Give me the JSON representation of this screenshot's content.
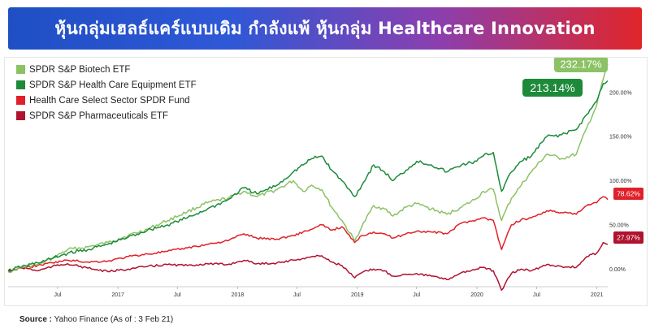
{
  "banner": {
    "title": "หุ้นกลุ่มเฮลธ์แคร์แบบเดิม กำลังแพ้ หุ้นกลุ่ม Healthcare Innovation"
  },
  "source": {
    "label": "Source :",
    "text": "Yahoo Finance (As of : 3 Feb 21)"
  },
  "colors": {
    "biotech": "#8cc265",
    "equipment": "#1d8a3a",
    "select_sector": "#e0202a",
    "pharma": "#b0132e"
  },
  "chart_data": {
    "type": "line",
    "ylabel": "",
    "xlabel": "",
    "y_unit": "%",
    "ylim": [
      -20,
      232
    ],
    "y_ticks": [
      "0.00%",
      "50.00%",
      "100.00%",
      "150.00%",
      "200.00%"
    ],
    "y_tick_values": [
      0,
      50,
      100,
      150,
      200
    ],
    "x_tick_labels": [
      "Jul",
      "2017",
      "Jul",
      "2018",
      "Jul",
      "2019",
      "Jul",
      "2020",
      "Jul",
      "2021"
    ],
    "x_tick_dates": [
      "2016-07-01",
      "2017-01-01",
      "2017-07-01",
      "2018-01-01",
      "2018-07-01",
      "2019-01-01",
      "2019-07-01",
      "2020-01-01",
      "2020-07-01",
      "2021-01-01"
    ],
    "x_range": [
      "2016-02-01",
      "2021-02-03"
    ],
    "grid": false,
    "legend_position": "top-left",
    "series": [
      {
        "name": "SPDR S&P Biotech ETF",
        "color": "#8cc265",
        "end_label": "232.17%",
        "points": [
          [
            "2016-02-01",
            -3
          ],
          [
            "2016-03-15",
            2
          ],
          [
            "2016-05-01",
            5
          ],
          [
            "2016-06-15",
            12
          ],
          [
            "2016-08-01",
            22
          ],
          [
            "2016-10-01",
            25
          ],
          [
            "2016-12-01",
            30
          ],
          [
            "2017-02-01",
            38
          ],
          [
            "2017-04-01",
            45
          ],
          [
            "2017-06-01",
            55
          ],
          [
            "2017-08-01",
            65
          ],
          [
            "2017-10-01",
            75
          ],
          [
            "2017-12-01",
            80
          ],
          [
            "2018-01-20",
            88
          ],
          [
            "2018-03-01",
            82
          ],
          [
            "2018-05-01",
            90
          ],
          [
            "2018-06-20",
            100
          ],
          [
            "2018-07-20",
            88
          ],
          [
            "2018-08-15",
            95
          ],
          [
            "2018-09-15",
            90
          ],
          [
            "2018-10-15",
            70
          ],
          [
            "2018-11-15",
            55
          ],
          [
            "2018-12-24",
            32
          ],
          [
            "2019-01-15",
            48
          ],
          [
            "2019-02-20",
            72
          ],
          [
            "2019-03-25",
            68
          ],
          [
            "2019-04-20",
            60
          ],
          [
            "2019-05-30",
            70
          ],
          [
            "2019-07-01",
            74
          ],
          [
            "2019-08-15",
            68
          ],
          [
            "2019-10-01",
            62
          ],
          [
            "2019-11-15",
            70
          ],
          [
            "2019-12-31",
            80
          ],
          [
            "2020-01-20",
            88
          ],
          [
            "2020-02-20",
            90
          ],
          [
            "2020-03-16",
            55
          ],
          [
            "2020-04-15",
            80
          ],
          [
            "2020-05-15",
            95
          ],
          [
            "2020-06-15",
            110
          ],
          [
            "2020-08-01",
            130
          ],
          [
            "2020-09-15",
            125
          ],
          [
            "2020-10-30",
            130
          ],
          [
            "2020-12-01",
            160
          ],
          [
            "2020-12-31",
            185
          ],
          [
            "2021-01-20",
            215
          ],
          [
            "2021-02-03",
            232.17
          ]
        ]
      },
      {
        "name": "SPDR S&P Health Care Equipment ETF",
        "color": "#1d8a3a",
        "end_label": "213.14%",
        "points": [
          [
            "2016-02-01",
            -2
          ],
          [
            "2016-03-15",
            3
          ],
          [
            "2016-05-01",
            7
          ],
          [
            "2016-06-15",
            12
          ],
          [
            "2016-08-01",
            18
          ],
          [
            "2016-10-01",
            22
          ],
          [
            "2016-12-01",
            28
          ],
          [
            "2017-02-01",
            36
          ],
          [
            "2017-04-01",
            44
          ],
          [
            "2017-06-01",
            50
          ],
          [
            "2017-08-01",
            58
          ],
          [
            "2017-10-01",
            68
          ],
          [
            "2017-12-01",
            78
          ],
          [
            "2018-01-20",
            92
          ],
          [
            "2018-03-01",
            85
          ],
          [
            "2018-05-01",
            95
          ],
          [
            "2018-06-20",
            110
          ],
          [
            "2018-07-20",
            118
          ],
          [
            "2018-08-15",
            125
          ],
          [
            "2018-09-15",
            128
          ],
          [
            "2018-10-15",
            112
          ],
          [
            "2018-11-15",
            100
          ],
          [
            "2018-12-24",
            82
          ],
          [
            "2019-01-15",
            95
          ],
          [
            "2019-02-20",
            118
          ],
          [
            "2019-03-25",
            110
          ],
          [
            "2019-04-20",
            100
          ],
          [
            "2019-05-30",
            112
          ],
          [
            "2019-07-01",
            122
          ],
          [
            "2019-08-15",
            118
          ],
          [
            "2019-10-01",
            110
          ],
          [
            "2019-11-15",
            118
          ],
          [
            "2019-12-31",
            122
          ],
          [
            "2020-01-20",
            128
          ],
          [
            "2020-02-20",
            132
          ],
          [
            "2020-03-16",
            88
          ],
          [
            "2020-04-15",
            110
          ],
          [
            "2020-05-15",
            122
          ],
          [
            "2020-06-15",
            128
          ],
          [
            "2020-08-01",
            150
          ],
          [
            "2020-09-15",
            152
          ],
          [
            "2020-10-30",
            158
          ],
          [
            "2020-12-01",
            175
          ],
          [
            "2020-12-31",
            190
          ],
          [
            "2021-01-20",
            210
          ],
          [
            "2021-02-03",
            213.14
          ]
        ]
      },
      {
        "name": "Health Care Select Sector SPDR Fund",
        "color": "#e0202a",
        "end_label": "78.62%",
        "points": [
          [
            "2016-02-01",
            -2
          ],
          [
            "2016-03-15",
            1
          ],
          [
            "2016-05-01",
            4
          ],
          [
            "2016-06-15",
            7
          ],
          [
            "2016-08-01",
            10
          ],
          [
            "2016-10-01",
            8
          ],
          [
            "2016-12-01",
            9
          ],
          [
            "2017-02-01",
            14
          ],
          [
            "2017-04-01",
            17
          ],
          [
            "2017-06-01",
            20
          ],
          [
            "2017-08-01",
            24
          ],
          [
            "2017-10-01",
            28
          ],
          [
            "2017-12-01",
            32
          ],
          [
            "2018-01-20",
            40
          ],
          [
            "2018-03-01",
            35
          ],
          [
            "2018-05-01",
            34
          ],
          [
            "2018-06-20",
            38
          ],
          [
            "2018-07-20",
            42
          ],
          [
            "2018-08-15",
            45
          ],
          [
            "2018-09-15",
            50
          ],
          [
            "2018-10-15",
            44
          ],
          [
            "2018-11-15",
            48
          ],
          [
            "2018-12-24",
            30
          ],
          [
            "2019-01-15",
            38
          ],
          [
            "2019-02-20",
            42
          ],
          [
            "2019-03-25",
            40
          ],
          [
            "2019-04-20",
            35
          ],
          [
            "2019-05-30",
            40
          ],
          [
            "2019-07-01",
            43
          ],
          [
            "2019-08-15",
            42
          ],
          [
            "2019-10-01",
            40
          ],
          [
            "2019-11-15",
            52
          ],
          [
            "2019-12-31",
            56
          ],
          [
            "2020-01-20",
            58
          ],
          [
            "2020-02-20",
            55
          ],
          [
            "2020-03-16",
            22
          ],
          [
            "2020-04-15",
            50
          ],
          [
            "2020-05-15",
            56
          ],
          [
            "2020-06-15",
            58
          ],
          [
            "2020-08-01",
            66
          ],
          [
            "2020-09-15",
            64
          ],
          [
            "2020-10-30",
            62
          ],
          [
            "2020-12-01",
            72
          ],
          [
            "2020-12-31",
            75
          ],
          [
            "2021-01-20",
            82
          ],
          [
            "2021-02-03",
            78.62
          ]
        ]
      },
      {
        "name": "SPDR S&P Pharmaceuticals ETF",
        "color": "#b0132e",
        "end_label": "27.97%",
        "points": [
          [
            "2016-02-01",
            -3
          ],
          [
            "2016-03-15",
            2
          ],
          [
            "2016-05-01",
            -2
          ],
          [
            "2016-06-15",
            3
          ],
          [
            "2016-08-01",
            6
          ],
          [
            "2016-10-01",
            1
          ],
          [
            "2016-12-01",
            -3
          ],
          [
            "2017-02-01",
            0
          ],
          [
            "2017-04-01",
            3
          ],
          [
            "2017-06-01",
            5
          ],
          [
            "2017-08-01",
            4
          ],
          [
            "2017-10-01",
            6
          ],
          [
            "2017-12-01",
            5
          ],
          [
            "2018-01-20",
            10
          ],
          [
            "2018-03-01",
            6
          ],
          [
            "2018-05-01",
            7
          ],
          [
            "2018-06-20",
            10
          ],
          [
            "2018-07-20",
            12
          ],
          [
            "2018-08-15",
            14
          ],
          [
            "2018-09-15",
            15
          ],
          [
            "2018-10-15",
            8
          ],
          [
            "2018-11-15",
            4
          ],
          [
            "2018-12-24",
            -10
          ],
          [
            "2019-01-15",
            -4
          ],
          [
            "2019-02-20",
            0
          ],
          [
            "2019-03-25",
            -2
          ],
          [
            "2019-04-20",
            -8
          ],
          [
            "2019-05-30",
            -6
          ],
          [
            "2019-07-01",
            -5
          ],
          [
            "2019-08-15",
            -8
          ],
          [
            "2019-10-01",
            -12
          ],
          [
            "2019-11-15",
            -4
          ],
          [
            "2019-12-31",
            0
          ],
          [
            "2020-01-20",
            2
          ],
          [
            "2020-02-20",
            -2
          ],
          [
            "2020-03-16",
            -24
          ],
          [
            "2020-04-15",
            -5
          ],
          [
            "2020-05-15",
            0
          ],
          [
            "2020-06-15",
            -2
          ],
          [
            "2020-08-01",
            5
          ],
          [
            "2020-09-15",
            3
          ],
          [
            "2020-10-30",
            2
          ],
          [
            "2020-12-01",
            14
          ],
          [
            "2020-12-31",
            18
          ],
          [
            "2021-01-20",
            30
          ],
          [
            "2021-02-03",
            27.97
          ]
        ]
      }
    ]
  }
}
